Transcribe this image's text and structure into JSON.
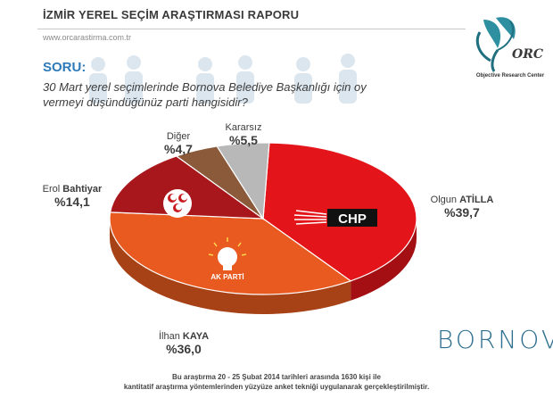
{
  "header": {
    "title": "İZMİR YEREL SEÇİM ARAŞTIRMASI RAPORU",
    "website": "www.orcarastirma.com.tr"
  },
  "logo": {
    "text": "ORC",
    "subtitle": "Objective Research Center"
  },
  "question": {
    "label": "SORU:",
    "text": "30 Mart yerel seçimlerinde Bornova Belediye Başkanlığı için oy vermeyi düşündüğünüz parti hangisidir?"
  },
  "chart_data": {
    "type": "pie",
    "slices": [
      {
        "label": "Olgun ATİLLA",
        "party": "CHP",
        "value": 39.7,
        "color": "#e3151a"
      },
      {
        "label": "İlhan KAYA",
        "party": "AK PARTİ",
        "value": 36.0,
        "color": "#e85a1f"
      },
      {
        "label": "Erol Bahtiyar",
        "party": "MHP",
        "value": 14.1,
        "color": "#a8171b"
      },
      {
        "label": "Diğer",
        "value": 4.7,
        "color": "#8a5a3a"
      },
      {
        "label": "Kararsız",
        "value": 5.5,
        "color": "#b8b8b8"
      }
    ]
  },
  "labels": {
    "olgun_first": "Olgun",
    "olgun_last": "ATİLLA",
    "olgun_pct": "%39,7",
    "ilhan_first": "İlhan",
    "ilhan_last": "KAYA",
    "ilhan_pct": "%36,0",
    "erol_first": "Erol",
    "erol_last": "Bahtiyar",
    "erol_pct": "%14,1",
    "diger": "Diğer",
    "diger_pct": "%4,7",
    "kararsiz": "Kararsız",
    "kararsiz_pct": "%5,5"
  },
  "party_marks": {
    "chp": "CHP",
    "akp": "AK PARTİ"
  },
  "district": "BORNOVA",
  "footer": {
    "line1": "Bu araştırma 20 - 25 Şubat 2014 tarihleri arasında  1630 kişi ile",
    "line2": "kantitatif araştırma yöntemlerinden yüzyüze anket tekniği  uygulanarak gerçekleştirilmiştir."
  }
}
